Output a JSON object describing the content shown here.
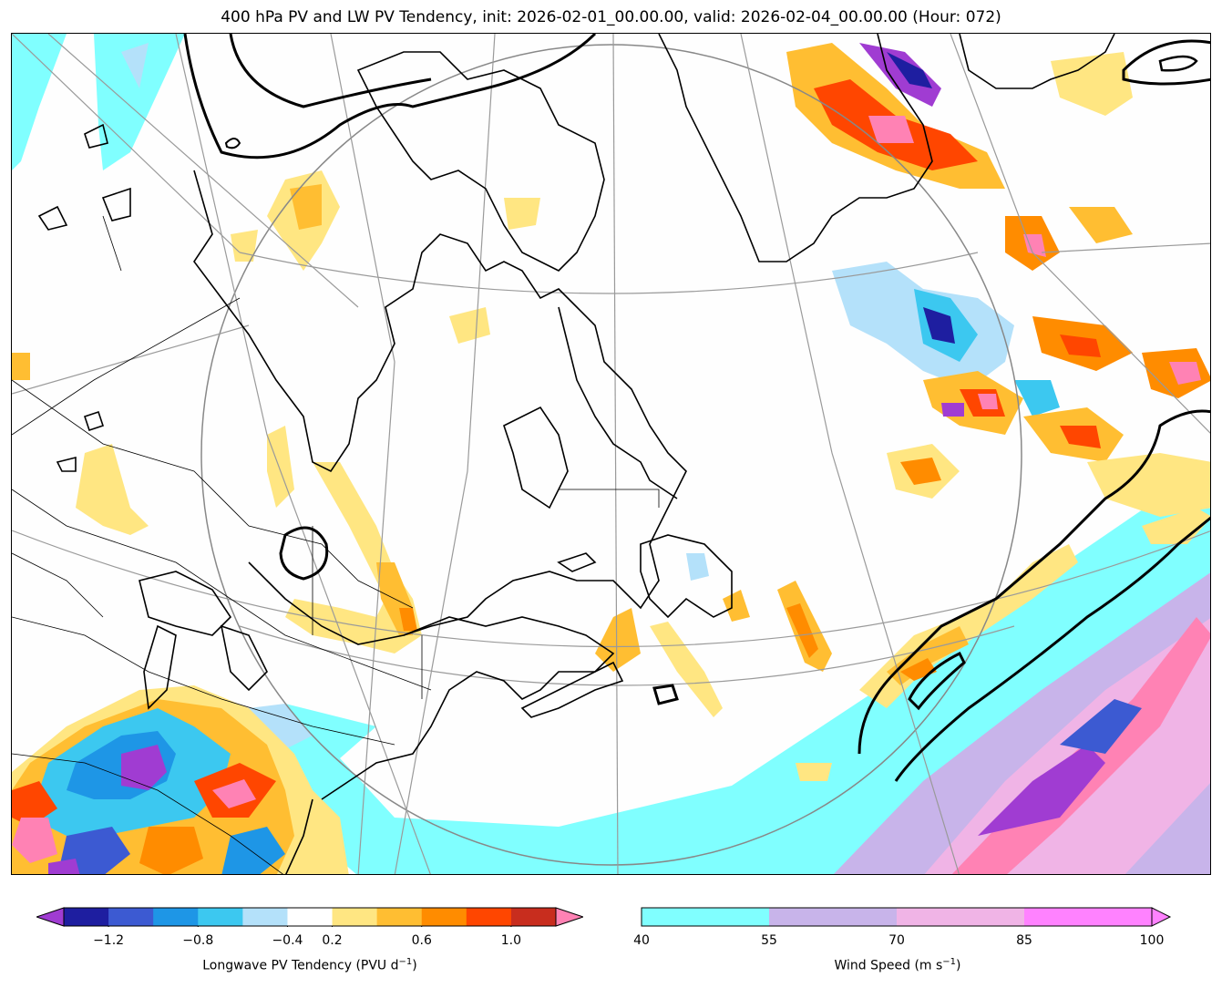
{
  "title": "400 hPa PV and LW PV Tendency, init: 2026-02-01_00.00.00, valid: 2026-02-04_00.00.00 (Hour: 072)",
  "colorbars": {
    "pv_tendency": {
      "label_text": "Longwave PV Tendency (PVU d",
      "label_exp": "−1",
      "label_close": ")",
      "ticks": [
        "−1.2",
        "−0.8",
        "−0.4",
        "0.2",
        "0.6",
        "1.0"
      ],
      "colors": [
        "#1e1ea0",
        "#3c5ad2",
        "#1e96e6",
        "#3cc8f0",
        "#b4e1fa",
        "#ffffff",
        "#ffe682",
        "#ffbe32",
        "#ff8c00",
        "#ff4600",
        "#c82d1e"
      ],
      "under_color": "#a03cd2",
      "over_color": "#ff82b4"
    },
    "wind_speed": {
      "label_text": "Wind Speed (m s",
      "label_exp": "−1",
      "label_close": ")",
      "ticks": [
        "40",
        "55",
        "70",
        "85",
        "100"
      ],
      "colors": [
        "#80ffff",
        "#c8b4ea",
        "#f0b4e6",
        "#ff82ff"
      ],
      "over_color": "#ff82ff"
    }
  },
  "map_colors": {
    "jet_fill_1": "#80ffff",
    "jet_fill_2": "#c8b4ea",
    "jet_fill_3": "#f0b4e6",
    "pv_contour": "#000000",
    "grid_line": "#9a9a9a"
  }
}
